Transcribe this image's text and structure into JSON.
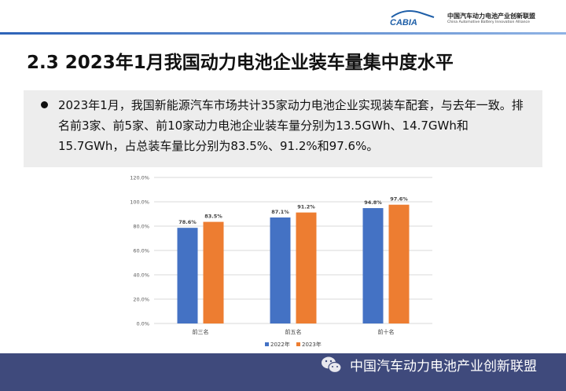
{
  "header": {
    "logo_text": "CABIA",
    "org_name": "中国汽车动力电池产业创新联盟",
    "org_name_en": "China Automotive Battery Innovation Alliance"
  },
  "title": "2.3 2023年1月我国动力电池企业装车量集中度水平",
  "bullet": "2023年1月，我国新能源汽车市场共计35家动力电池企业实现装车配套，与去年一致。排名前3家、前5家、前10家动力电池企业装车量分别为13.5GWh、14.7GWh和15.7GWh，占总装车量比分别为83.5%、91.2%和97.6%。",
  "footer": {
    "text": "中国汽车动力电池产业创新联盟"
  },
  "colors": {
    "s2022": "#4472c4",
    "s2023": "#ed7d31",
    "footer": "#3f4a7c"
  },
  "chart_data": {
    "type": "bar",
    "title": "",
    "xlabel": "",
    "ylabel": "",
    "categories": [
      "前三名",
      "前五名",
      "前十名"
    ],
    "series": [
      {
        "name": "2022年",
        "values": [
          78.6,
          87.1,
          94.8
        ],
        "labels": [
          "78.6%",
          "87.1%",
          "94.8%"
        ]
      },
      {
        "name": "2023年",
        "values": [
          83.5,
          91.2,
          97.6
        ],
        "labels": [
          "83.5%",
          "91.2%",
          "97.6%"
        ]
      }
    ],
    "ylim": [
      0,
      120
    ],
    "yticks": [
      "0.0%",
      "20.0%",
      "40.0%",
      "60.0%",
      "80.0%",
      "100.0%",
      "120.0%"
    ],
    "grid": true,
    "legend": "bottom"
  }
}
